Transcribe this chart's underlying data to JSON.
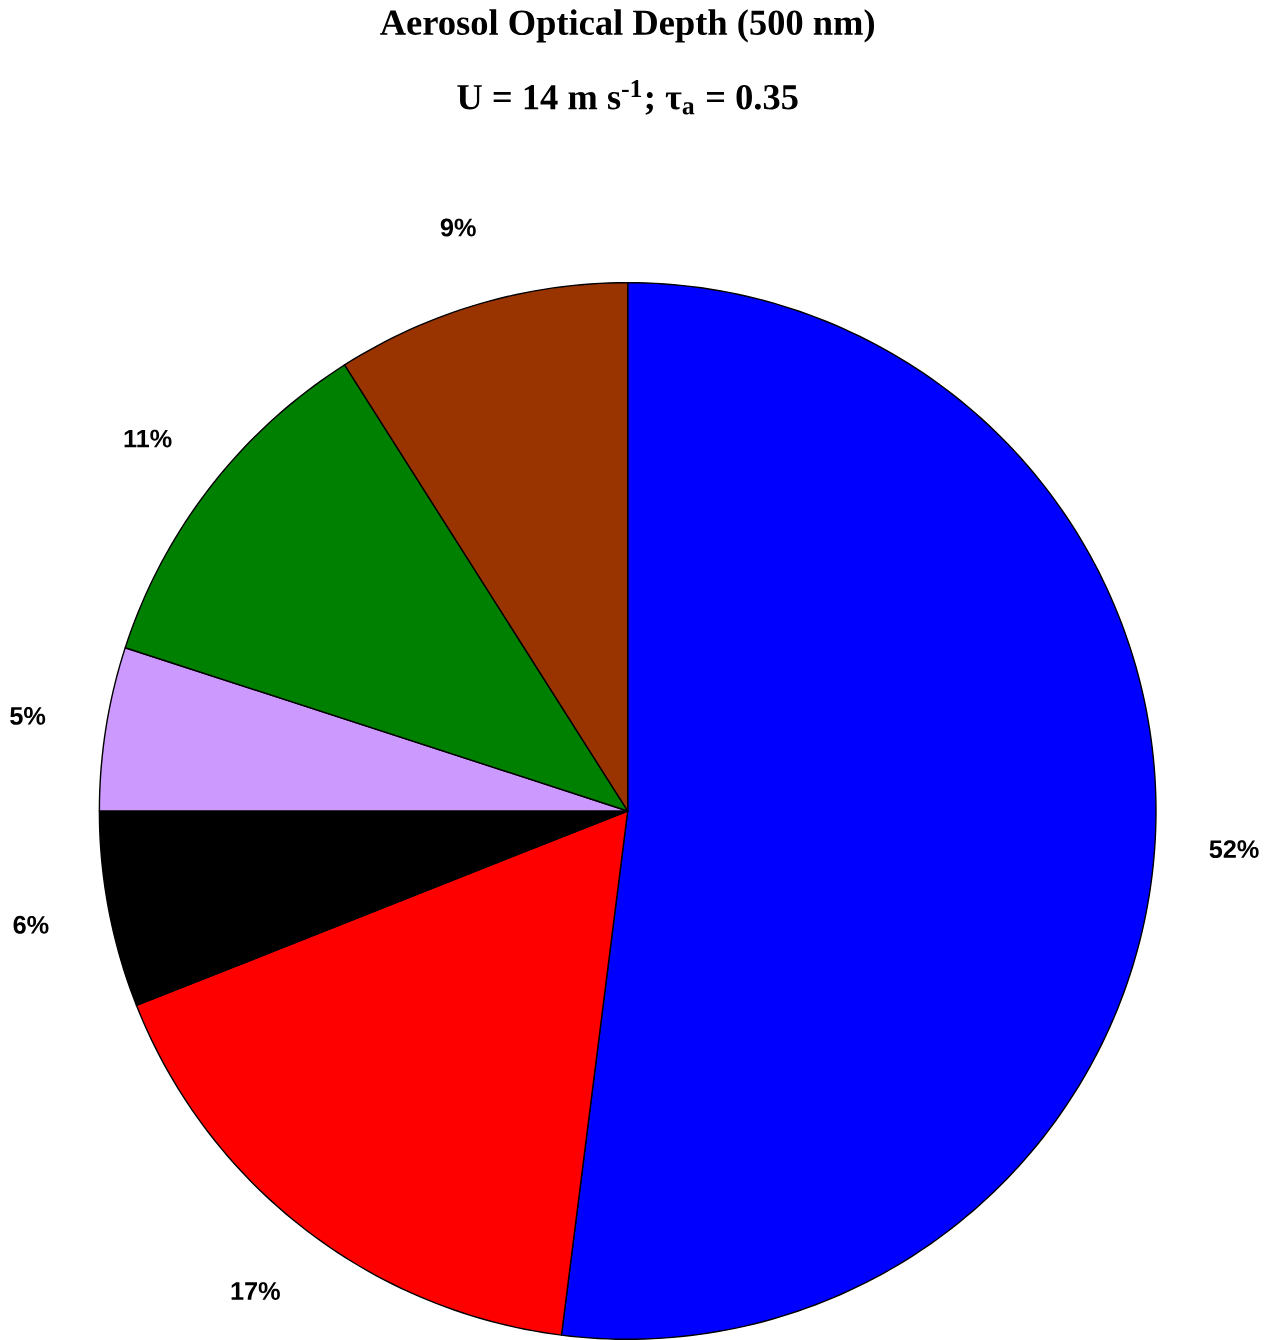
{
  "chart_data": {
    "type": "pie",
    "title": "Aerosol Optical Depth (500 nm)",
    "subtitle": "U = 14 m s$^{-1}$; τ$_{a}$ = 0.35",
    "categories": [
      null,
      null,
      null,
      null,
      null,
      null
    ],
    "values": [
      52,
      17,
      6,
      5,
      11,
      9
    ],
    "colors": [
      "#0000ff",
      "#ff0000",
      "#000000",
      "#cc99ff",
      "#008000",
      "#993300"
    ],
    "value_labels": [
      "52%",
      "17%",
      "6%",
      "5%",
      "11%",
      "9%"
    ]
  }
}
